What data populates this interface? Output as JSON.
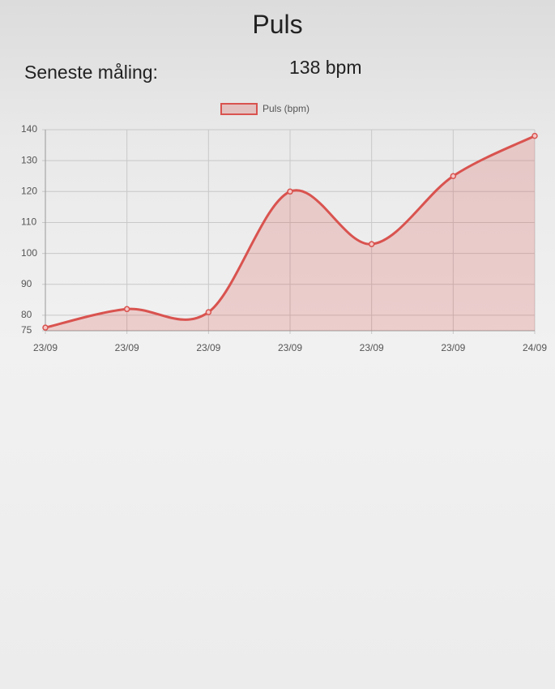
{
  "header": {
    "title": "Puls",
    "latest_label": "Seneste måling:",
    "latest_value": "138 bpm"
  },
  "chart_data": {
    "type": "line",
    "categories": [
      "23/09",
      "23/09",
      "23/09",
      "23/09",
      "23/09",
      "23/09",
      "24/09"
    ],
    "series": [
      {
        "name": "Puls (bpm)",
        "color": "#d9534f",
        "values": [
          76,
          82,
          81,
          120,
          103,
          125,
          138
        ]
      }
    ],
    "ylim": [
      75,
      140
    ],
    "yticks": [
      75,
      80,
      90,
      100,
      110,
      120,
      130,
      140
    ],
    "grid": true,
    "legend": "top"
  }
}
